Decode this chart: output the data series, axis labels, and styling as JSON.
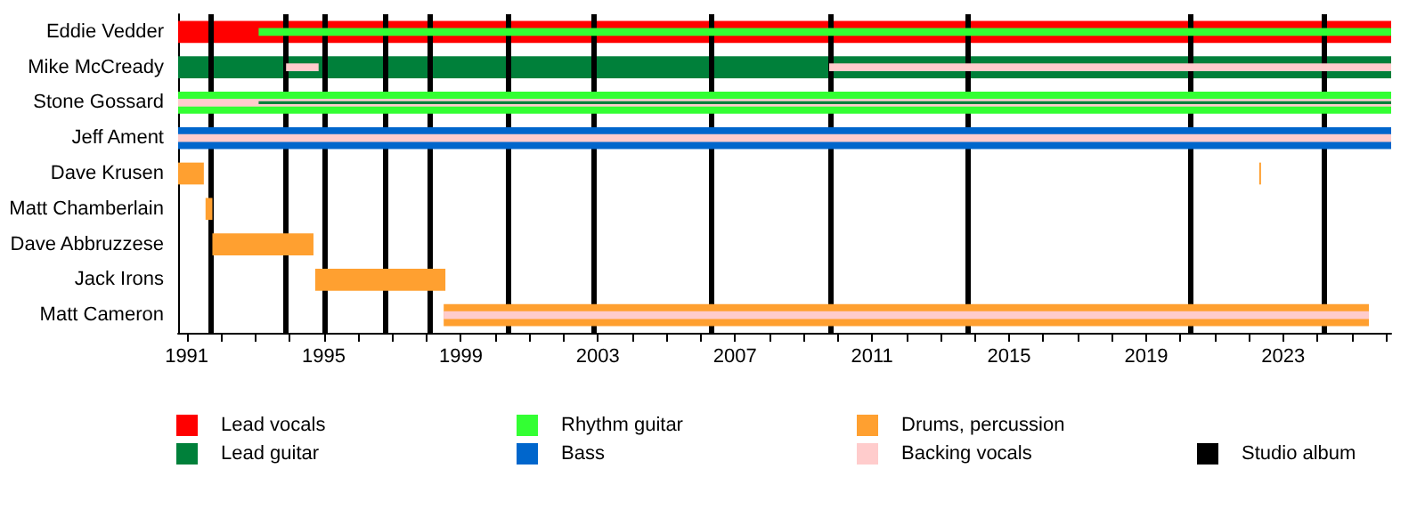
{
  "chart_data": {
    "type": "bar",
    "orientation": "horizontal",
    "legend": "bottom",
    "categories": [
      "Eddie Vedder",
      "Mike McCready",
      "Stone Gossard",
      "Jeff Ament",
      "Dave Krusen",
      "Matt Chamberlain",
      "Dave Abbruzzese",
      "Jack Irons",
      "Matt Cameron"
    ],
    "series": [
      {
        "name": "Lead vocals",
        "color": "#ff0000",
        "base": [
          1990.75,
          null,
          null,
          null,
          null,
          null,
          null,
          null,
          null
        ],
        "values": [
          35.4,
          null,
          null,
          null,
          null,
          null,
          null,
          null,
          null
        ]
      },
      {
        "name": "Lead guitar",
        "color": "#00803a",
        "base": [
          null,
          1990.75,
          null,
          null,
          null,
          null,
          null,
          null,
          null
        ],
        "values": [
          null,
          35.4,
          null,
          null,
          null,
          null,
          null,
          null,
          null
        ]
      },
      {
        "name": "Rhythm guitar",
        "color": "#33ff33",
        "base": [
          1993.1,
          null,
          1990.75,
          null,
          null,
          null,
          null,
          null,
          null
        ],
        "values": [
          33.05,
          null,
          35.4,
          null,
          null,
          null,
          null,
          null,
          null
        ]
      },
      {
        "name": "Bass",
        "color": "#0066cc",
        "base": [
          null,
          null,
          null,
          1990.75,
          null,
          null,
          null,
          null,
          null
        ],
        "values": [
          null,
          null,
          null,
          35.4,
          null,
          null,
          null,
          null,
          null
        ]
      },
      {
        "name": "Drums, percussion",
        "color": "#ffa030",
        "base": [
          null,
          null,
          null,
          null,
          1990.75,
          1991.55,
          1991.75,
          1994.75,
          1998.5
        ],
        "values": [
          null,
          null,
          null,
          null,
          0.75,
          0.2,
          2.95,
          3.8,
          27.0
        ]
      },
      {
        "name": "Backing vocals",
        "color": "#ffcccc",
        "base": [
          null,
          1993.9,
          1990.75,
          1990.75,
          null,
          null,
          null,
          null,
          1998.5
        ],
        "values": [
          null,
          0.95,
          35.4,
          35.4,
          null,
          null,
          null,
          null,
          27.0
        ]
      },
      {
        "color": "#00803a",
        "base": [
          null,
          null,
          1993.1,
          null,
          null,
          null,
          null,
          null,
          null
        ],
        "values": [
          null,
          null,
          33.05,
          null,
          null,
          null,
          null,
          null,
          null
        ]
      },
      {
        "color": "#ffcccc",
        "base": [
          null,
          2009.75,
          null,
          null,
          null,
          null,
          null,
          null,
          null
        ],
        "values": [
          null,
          16.4,
          null,
          null,
          null,
          null,
          null,
          null,
          null
        ]
      },
      {
        "color": "#ffa030",
        "base": [
          null,
          null,
          null,
          null,
          2022.3,
          null,
          null,
          null,
          null
        ],
        "values": [
          null,
          null,
          null,
          null,
          0.05,
          null,
          null,
          null,
          null
        ]
      }
    ],
    "xlim": [
      1990.75,
      2026.15
    ],
    "xticks": [
      1991,
      {
        "value": 1992,
        "label": null
      },
      {
        "value": 1993,
        "label": null
      },
      {
        "value": 1994,
        "label": null
      },
      1995,
      {
        "value": 1996,
        "label": null
      },
      {
        "value": 1997,
        "label": null
      },
      {
        "value": 1998,
        "label": null
      },
      1999,
      {
        "value": 2000,
        "label": null
      },
      {
        "value": 2001,
        "label": null
      },
      {
        "value": 2002,
        "label": null
      },
      2003,
      {
        "value": 2004,
        "label": null
      },
      {
        "value": 2005,
        "label": null
      },
      {
        "value": 2006,
        "label": null
      },
      2007,
      {
        "value": 2008,
        "label": null
      },
      {
        "value": 2009,
        "label": null
      },
      {
        "value": 2010,
        "label": null
      },
      2011,
      {
        "value": 2012,
        "label": null
      },
      {
        "value": 2013,
        "label": null
      },
      {
        "value": 2014,
        "label": null
      },
      2015,
      {
        "value": 2016,
        "label": null
      },
      {
        "value": 2017,
        "label": null
      },
      {
        "value": 2018,
        "label": null
      },
      2019,
      {
        "value": 2020,
        "label": null
      },
      {
        "value": 2021,
        "label": null
      },
      {
        "value": 2022,
        "label": null
      },
      2023,
      {
        "value": 2024,
        "label": null
      },
      {
        "value": 2025,
        "label": null
      },
      {
        "value": 2026,
        "label": null
      }
    ],
    "ref_lines": [
      {
        "axis": "x",
        "value": 1991.7,
        "label": "Studio album",
        "color": "#000000"
      },
      {
        "axis": "x",
        "value": 1993.9,
        "color": "#000000"
      },
      {
        "axis": "x",
        "value": 1995.0,
        "color": "#000000"
      },
      {
        "axis": "x",
        "value": 1996.8,
        "color": "#000000"
      },
      {
        "axis": "x",
        "value": 1998.1,
        "color": "#000000"
      },
      {
        "axis": "x",
        "value": 2000.4,
        "color": "#000000"
      },
      {
        "axis": "x",
        "value": 2002.9,
        "color": "#000000"
      },
      {
        "axis": "x",
        "value": 2006.3,
        "color": "#000000"
      },
      {
        "axis": "x",
        "value": 2009.8,
        "color": "#000000"
      },
      {
        "axis": "x",
        "value": 2013.8,
        "color": "#000000"
      },
      {
        "axis": "x",
        "value": 2020.3,
        "color": "#000000"
      },
      {
        "axis": "x",
        "value": 2024.2,
        "color": "#000000"
      }
    ]
  }
}
